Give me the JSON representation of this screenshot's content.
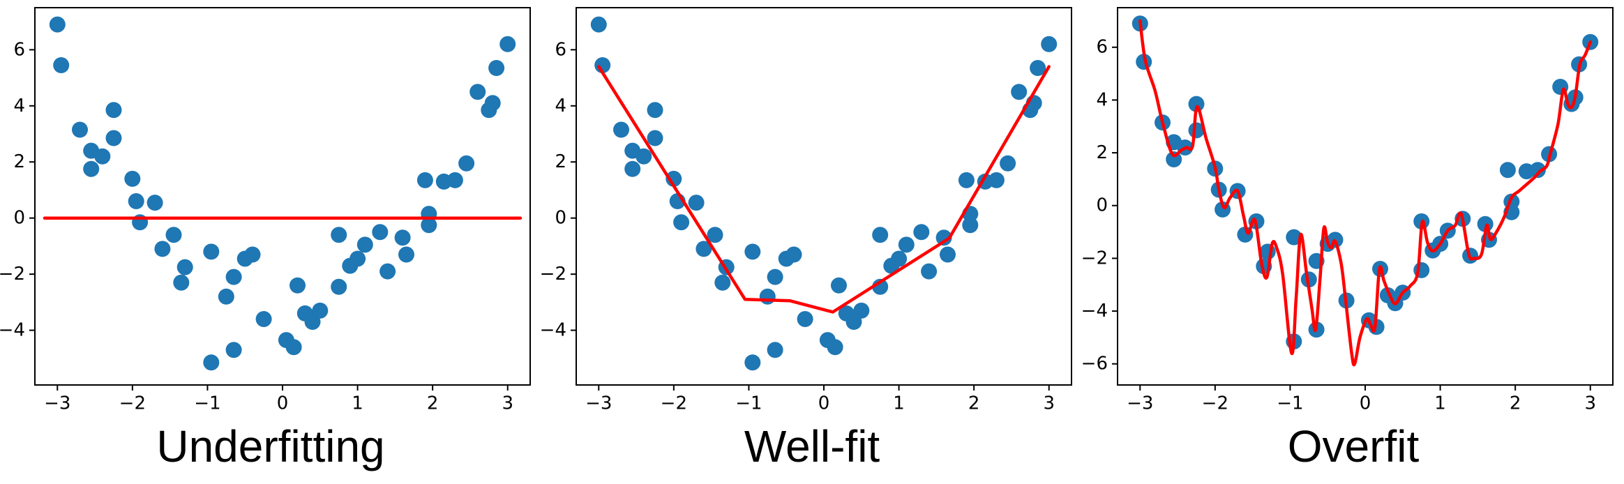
{
  "figure": {
    "background": "#ffffff",
    "description": "Three side-by-side scatter plots of the same noisy parabola-like dataset with three different regression fits, illustrating underfitting, a good fit, and overfitting."
  },
  "chart_data": {
    "type": "scatter",
    "x_ticks": [
      -3,
      -2,
      -1,
      0,
      1,
      2,
      3
    ],
    "x_lim": [
      -3.3,
      3.3
    ],
    "grid": false,
    "legend": "none",
    "colors": {
      "scatter": "#1f77b4",
      "fit_line": "#ff0000",
      "axis": "#000000",
      "tick_text": "#000000",
      "title_text": "#000000",
      "plot_background": "#ffffff"
    },
    "scatter": {
      "x": [
        -3.0,
        -2.95,
        -2.7,
        -2.55,
        -2.55,
        -2.4,
        -2.25,
        -2.25,
        -2.0,
        -1.95,
        -1.9,
        -1.7,
        -1.6,
        -1.45,
        -1.35,
        -1.3,
        -0.95,
        -0.95,
        -0.75,
        -0.65,
        -0.65,
        -0.5,
        -0.4,
        -0.25,
        0.05,
        0.15,
        0.2,
        0.3,
        0.4,
        0.5,
        0.75,
        0.75,
        0.9,
        1.0,
        1.1,
        1.3,
        1.4,
        1.6,
        1.65,
        1.9,
        1.95,
        1.95,
        2.15,
        2.3,
        2.45,
        2.6,
        2.75,
        2.8,
        2.85,
        3.0
      ],
      "y": [
        6.9,
        5.45,
        3.15,
        2.4,
        1.75,
        2.2,
        3.85,
        2.85,
        1.4,
        0.6,
        -0.15,
        0.55,
        -1.1,
        -0.6,
        -2.3,
        -1.75,
        -1.2,
        -5.15,
        -2.8,
        -4.7,
        -2.1,
        -1.45,
        -1.3,
        -3.6,
        -4.35,
        -4.6,
        -2.4,
        -3.4,
        -3.7,
        -3.3,
        -2.45,
        -0.6,
        -1.7,
        -1.45,
        -0.95,
        -0.5,
        -1.9,
        -0.7,
        -1.3,
        1.35,
        0.15,
        -0.25,
        1.3,
        1.35,
        1.95,
        4.5,
        3.85,
        4.1,
        5.35,
        6.2
      ]
    },
    "panels": [
      {
        "title": "Underfitting",
        "y_ticks": [
          6,
          4,
          2,
          0,
          -2,
          -4
        ],
        "y_lim": [
          -5.95,
          7.5
        ],
        "fit_style": "straight",
        "fit_description": "constant fit y = 0",
        "fit_line": {
          "x": [
            -3.17,
            3.17
          ],
          "y": [
            0,
            0
          ]
        }
      },
      {
        "title": "Well-fit",
        "y_ticks": [
          6,
          4,
          2,
          0,
          -2,
          -4
        ],
        "y_lim": [
          -5.95,
          7.5
        ],
        "fit_style": "straight",
        "fit_description": "piecewise-linear V-shaped fit",
        "fit_line": {
          "x": [
            -3.0,
            -1.05,
            -0.45,
            0.12,
            1.67,
            3.0
          ],
          "y": [
            5.4,
            -2.9,
            -2.95,
            -3.35,
            -0.72,
            5.4
          ]
        }
      },
      {
        "title": "Overfit",
        "y_ticks": [
          6,
          4,
          2,
          0,
          -2,
          -4,
          -6
        ],
        "y_lim": [
          -6.8,
          7.5
        ],
        "fit_style": "smooth",
        "fit_description": "high-variance wiggly fit interpolating nearly every point",
        "fit_line": {
          "x": [
            -3.0,
            -2.93,
            -2.8,
            -2.7,
            -2.57,
            -2.45,
            -2.38,
            -2.3,
            -2.24,
            -2.12,
            -2.0,
            -1.95,
            -1.88,
            -1.8,
            -1.7,
            -1.62,
            -1.56,
            -1.47,
            -1.38,
            -1.31,
            -1.24,
            -1.18,
            -1.1,
            -0.98,
            -0.92,
            -0.86,
            -0.78,
            -0.71,
            -0.66,
            -0.6,
            -0.55,
            -0.5,
            -0.45,
            -0.4,
            -0.32,
            -0.26,
            -0.18,
            -0.14,
            -0.07,
            0.02,
            0.07,
            0.13,
            0.19,
            0.25,
            0.32,
            0.4,
            0.5,
            0.6,
            0.7,
            0.76,
            0.83,
            0.9,
            1.0,
            1.1,
            1.2,
            1.28,
            1.38,
            1.45,
            1.55,
            1.62,
            1.67,
            1.75,
            1.85,
            1.95,
            2.05,
            2.15,
            2.25,
            2.33,
            2.42,
            2.47,
            2.57,
            2.64,
            2.7,
            2.75,
            2.8,
            2.86,
            2.93,
            3.0
          ],
          "y": [
            7.0,
            5.5,
            4.35,
            3.15,
            1.95,
            2.1,
            2.2,
            2.25,
            3.75,
            2.55,
            1.45,
            0.6,
            -0.08,
            0.3,
            0.55,
            -0.4,
            -1.05,
            -0.55,
            -2.2,
            -2.72,
            -1.45,
            -1.6,
            -2.6,
            -5.6,
            -3.5,
            -1.1,
            -2.6,
            -3.9,
            -4.7,
            -2.7,
            -0.85,
            -1.4,
            -1.6,
            -1.35,
            -2.2,
            -3.6,
            -5.6,
            -6.0,
            -5.0,
            -4.3,
            -4.5,
            -4.62,
            -2.4,
            -2.85,
            -3.35,
            -3.72,
            -3.3,
            -3.05,
            -2.55,
            -0.62,
            -1.4,
            -1.72,
            -1.45,
            -0.95,
            -0.75,
            -0.32,
            -1.85,
            -2.0,
            -1.85,
            -0.75,
            -1.28,
            -1.0,
            -0.45,
            0.3,
            0.55,
            0.8,
            1.05,
            1.3,
            1.5,
            2.0,
            3.1,
            4.4,
            3.85,
            3.72,
            4.15,
            5.35,
            5.7,
            6.2
          ]
        }
      }
    ]
  }
}
